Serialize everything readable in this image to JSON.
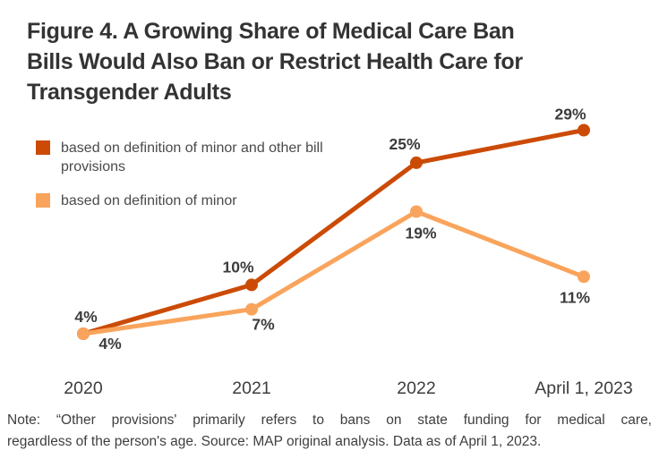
{
  "title": {
    "lines": [
      "Figure 4. A Growing Share of Medical Care Ban",
      "Bills Would Also Ban or Restrict Health Care for",
      "Transgender Adults"
    ]
  },
  "colors": {
    "dark_orange": "#cb4b06",
    "light_orange": "#f9a45c",
    "title_text": "#333333",
    "label_text": "#3b3b3b"
  },
  "note": {
    "lines": [
      "Note: “Other provisions' primarily refers to bans on state funding for medical care,",
      "regardless of the person's age. Source: MAP original analysis. Data as of April 1, 2023."
    ]
  },
  "chart_data": {
    "type": "line",
    "title": "Figure 4. A Growing Share of Medical Care Ban Bills Would Also Ban or Restrict Health Care for Transgender Adults",
    "categories": [
      "2020",
      "2021",
      "2022",
      "April 1, 2023"
    ],
    "series": [
      {
        "name": "based on definition of minor and other bill provisions",
        "color": "#cb4b06",
        "values": [
          4,
          10,
          25,
          29
        ],
        "labels": [
          "4%",
          "10%",
          "25%",
          "29%"
        ]
      },
      {
        "name": "based on definition of minor",
        "color": "#f9a45c",
        "values": [
          4,
          7,
          19,
          11
        ],
        "labels": [
          "4%",
          "7%",
          "19%",
          "11%"
        ]
      }
    ],
    "unit": "%",
    "ylim": [
      0,
      32
    ],
    "xlabel": "",
    "ylabel": "",
    "gridlines": false,
    "axes_visible": false,
    "legend_position": "top-left"
  }
}
